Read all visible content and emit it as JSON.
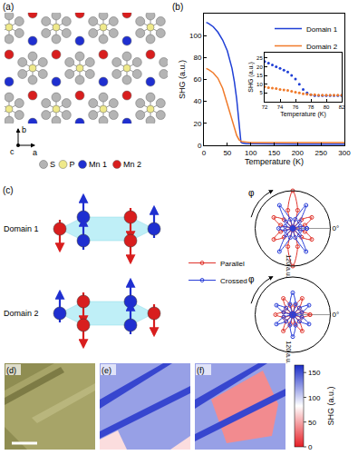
{
  "figure": {
    "a": {
      "label": "(a)",
      "atoms": [
        {
          "text": "S",
          "color": "#b4b4b4"
        },
        {
          "text": "P",
          "color": "#efe98a"
        },
        {
          "text": "Mn 1",
          "color": "#1f2fd0"
        },
        {
          "text": "Mn 2",
          "color": "#d81e1e"
        }
      ],
      "axes": [
        "c",
        "b",
        "a"
      ]
    },
    "b": {
      "label": "(b)"
    },
    "c": {
      "label": "(c)",
      "domains": [
        "Domain 1",
        "Domain 2"
      ]
    },
    "d": {
      "label": "(d)"
    },
    "e": {
      "label": "(e)",
      "regions": [
        120,
        155,
        70
      ]
    },
    "f": {
      "label": "(f)",
      "regions": [
        40,
        120,
        155
      ]
    },
    "colorbar": {
      "title": "SHG (a.u.)",
      "range": [
        0,
        165
      ],
      "ticks": [
        0,
        50,
        100,
        150
      ],
      "colors": [
        "#e61e25",
        "#ffffff",
        "#1b2dc8"
      ]
    }
  },
  "chart_data": [
    {
      "type": "line",
      "x_label": "Temperature (K)",
      "y_label": "SHG (a.u.)",
      "xlim": [
        0,
        300
      ],
      "xticks": [
        0,
        50,
        100,
        150,
        200,
        250,
        300
      ],
      "ylim": [
        0,
        120
      ],
      "yticks": [
        0,
        20,
        40,
        60,
        80,
        100
      ],
      "grid": false,
      "legend": "upper right",
      "series": [
        {
          "name": "Domain 1",
          "color": "#1f3fd6",
          "x": [
            5,
            10,
            20,
            30,
            40,
            50,
            60,
            65,
            70,
            73,
            75,
            77,
            79,
            82,
            90,
            100,
            150,
            200,
            250,
            300
          ],
          "values": [
            112,
            111,
            108,
            103,
            96,
            86,
            70,
            58,
            42,
            28,
            18,
            8,
            3,
            2,
            1.5,
            1.5,
            1,
            1,
            1,
            1
          ]
        },
        {
          "name": "Domain 2",
          "color": "#f07a2a",
          "x": [
            5,
            10,
            20,
            30,
            40,
            50,
            60,
            65,
            70,
            75,
            80,
            90,
            100,
            150,
            200,
            250,
            300
          ],
          "values": [
            70,
            69,
            66,
            61,
            52,
            38,
            22,
            15,
            9,
            5,
            3.5,
            3,
            2.5,
            2.5,
            2.5,
            2.5,
            2.5
          ]
        }
      ]
    },
    {
      "type": "scatter",
      "x_label": "Temperature (K)",
      "y_label": "SHG (a.u.)",
      "xlim": [
        72,
        82
      ],
      "xticks": [
        72,
        74,
        76,
        78,
        80,
        82
      ],
      "ylim": [
        0,
        28
      ],
      "yticks": [
        5,
        10,
        15,
        20,
        25
      ],
      "grid": false,
      "marker": "circle",
      "series": [
        {
          "name": "Domain 1",
          "color": "#1f3fd6",
          "x": [
            72,
            72.5,
            73,
            73.5,
            74,
            74.5,
            75,
            75.5,
            76,
            76.5,
            77,
            77.5,
            78,
            78.5,
            79,
            79.5,
            80,
            80.5,
            81,
            81.5,
            82
          ],
          "values": [
            23,
            22,
            21,
            20,
            19,
            18,
            17,
            15,
            13,
            10,
            7,
            5,
            4,
            3.5,
            3.5,
            3.5,
            3.5,
            3.5,
            3.5,
            3.5,
            3.5
          ]
        },
        {
          "name": "Domain 2",
          "color": "#f07a2a",
          "x": [
            72,
            72.5,
            73,
            73.5,
            74,
            74.5,
            75,
            75.5,
            76,
            76.5,
            77,
            77.5,
            78,
            78.5,
            79,
            79.5,
            80,
            80.5,
            81,
            81.5,
            82
          ],
          "values": [
            8.5,
            8,
            7.8,
            7.5,
            7,
            6.8,
            6.5,
            6,
            5.5,
            5,
            4.6,
            4.3,
            4,
            4,
            3.8,
            3.8,
            3.8,
            3.8,
            3.8,
            3.8,
            3.8
          ]
        }
      ]
    },
    {
      "type": "polar",
      "title": "Domain 1",
      "theta": [
        0,
        15,
        30,
        45,
        60,
        75,
        90,
        105,
        120,
        135,
        150,
        165,
        180,
        195,
        210,
        225,
        240,
        255,
        270,
        285,
        300,
        315,
        330,
        345,
        360
      ],
      "rlim": [
        0,
        120
      ],
      "rticks": [
        {
          "value": 120,
          "label": "120 a.u."
        }
      ],
      "angle_ticks": [
        {
          "value": 0,
          "label": "0°"
        }
      ],
      "angle_label": "φ",
      "legend": "left",
      "series": [
        {
          "name": "Parallel",
          "color": "#e0342c",
          "marker": "circle-open",
          "values": [
            5,
            40,
            70,
            40,
            5,
            60,
            120,
            60,
            5,
            40,
            70,
            40,
            5,
            40,
            70,
            40,
            5,
            60,
            120,
            60,
            5,
            40,
            70,
            40,
            5
          ]
        },
        {
          "name": "Crossed",
          "color": "#2a3fd8",
          "marker": "circle-open",
          "values": [
            45,
            25,
            3,
            30,
            85,
            30,
            3,
            30,
            85,
            30,
            3,
            25,
            45,
            25,
            3,
            30,
            85,
            30,
            3,
            30,
            85,
            30,
            3,
            25,
            45
          ]
        }
      ]
    },
    {
      "type": "polar",
      "title": "Domain 2",
      "theta": [
        0,
        15,
        30,
        45,
        60,
        75,
        90,
        105,
        120,
        135,
        150,
        165,
        180,
        195,
        210,
        225,
        240,
        255,
        270,
        285,
        300,
        315,
        330,
        345,
        360
      ],
      "rlim": [
        0,
        120
      ],
      "rticks": [
        {
          "value": 120,
          "label": "120 a.u."
        }
      ],
      "angle_ticks": [
        {
          "value": 0,
          "label": "0°"
        }
      ],
      "angle_label": "φ",
      "series": [
        {
          "name": "Parallel",
          "color": "#e0342c",
          "marker": "circle-open",
          "values": [
            55,
            30,
            5,
            30,
            60,
            30,
            5,
            30,
            60,
            30,
            5,
            30,
            55,
            30,
            5,
            30,
            60,
            30,
            5,
            30,
            60,
            30,
            5,
            30,
            55
          ]
        },
        {
          "name": "Crossed",
          "color": "#2a3fd8",
          "marker": "circle-open",
          "values": [
            5,
            30,
            60,
            30,
            5,
            35,
            70,
            35,
            5,
            30,
            60,
            30,
            5,
            30,
            60,
            30,
            5,
            35,
            70,
            35,
            5,
            30,
            60,
            30,
            5
          ]
        }
      ]
    }
  ]
}
